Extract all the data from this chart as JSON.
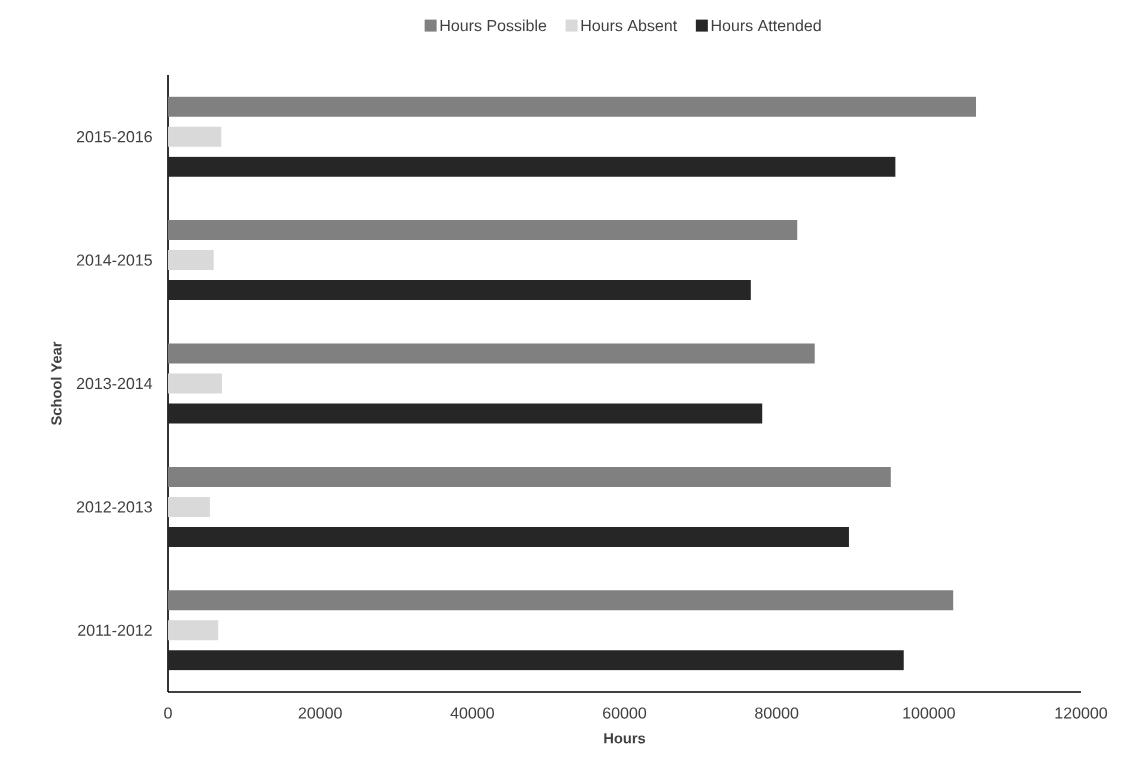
{
  "chart_data": {
    "type": "bar",
    "orientation": "horizontal",
    "xlabel": "Hours",
    "ylabel": "School Year",
    "categories": [
      "2015-2016",
      "2014-2015",
      "2013-2014",
      "2012-2013",
      "2011-2012"
    ],
    "series": [
      {
        "name": "Hours Possible",
        "color": "#808080",
        "values": [
          106200,
          82700,
          85000,
          95000,
          103200
        ]
      },
      {
        "name": "Hours Absent",
        "color": "#d9d9d9",
        "values": [
          7000,
          6000,
          7100,
          5500,
          6600
        ]
      },
      {
        "name": "Hours Attended",
        "color": "#262626",
        "values": [
          95600,
          76600,
          78100,
          89500,
          96700
        ]
      }
    ],
    "xlim": [
      0,
      120000
    ],
    "xticks": [
      0,
      20000,
      40000,
      60000,
      80000,
      100000,
      120000
    ],
    "legend": "top"
  }
}
